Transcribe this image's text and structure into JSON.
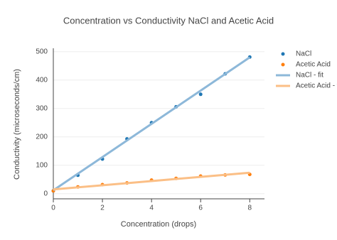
{
  "chart_data": {
    "type": "scatter",
    "title": "Concentration vs Conductivity NaCl  and Acetic Acid",
    "x_label": "Concentration (drops)",
    "y_label": "Conductivity (microseconds/cm)",
    "xlim": [
      0,
      8.6
    ],
    "ylim": [
      -18,
      512
    ],
    "xticks": [
      0,
      2,
      4,
      6,
      8
    ],
    "yticks": [
      0,
      100,
      200,
      300,
      400,
      500
    ],
    "grid": true,
    "legend": "top-right",
    "series": [
      {
        "name": "NaCl",
        "mode": "markers",
        "color": "#1f77b4",
        "x": [
          0,
          1,
          2,
          3,
          4,
          5,
          6,
          7,
          8
        ],
        "values": [
          10,
          65,
          122,
          193,
          250,
          306,
          350,
          422,
          481
        ]
      },
      {
        "name": "Acetic Acid",
        "mode": "markers",
        "color": "#ff7f0e",
        "x": [
          0,
          1,
          2,
          3,
          4,
          5,
          6,
          7,
          8
        ],
        "values": [
          10,
          24,
          32,
          38,
          48,
          54,
          62,
          66,
          68
        ]
      },
      {
        "name": "NaCl - fit",
        "mode": "lines",
        "color": "#8db8d9",
        "x": [
          0,
          8
        ],
        "values": [
          12,
          480
        ]
      },
      {
        "name": "Acetic Acid - fit",
        "mode": "lines",
        "color": "#fbbf86",
        "x": [
          0,
          8
        ],
        "values": [
          15,
          74
        ]
      }
    ]
  }
}
